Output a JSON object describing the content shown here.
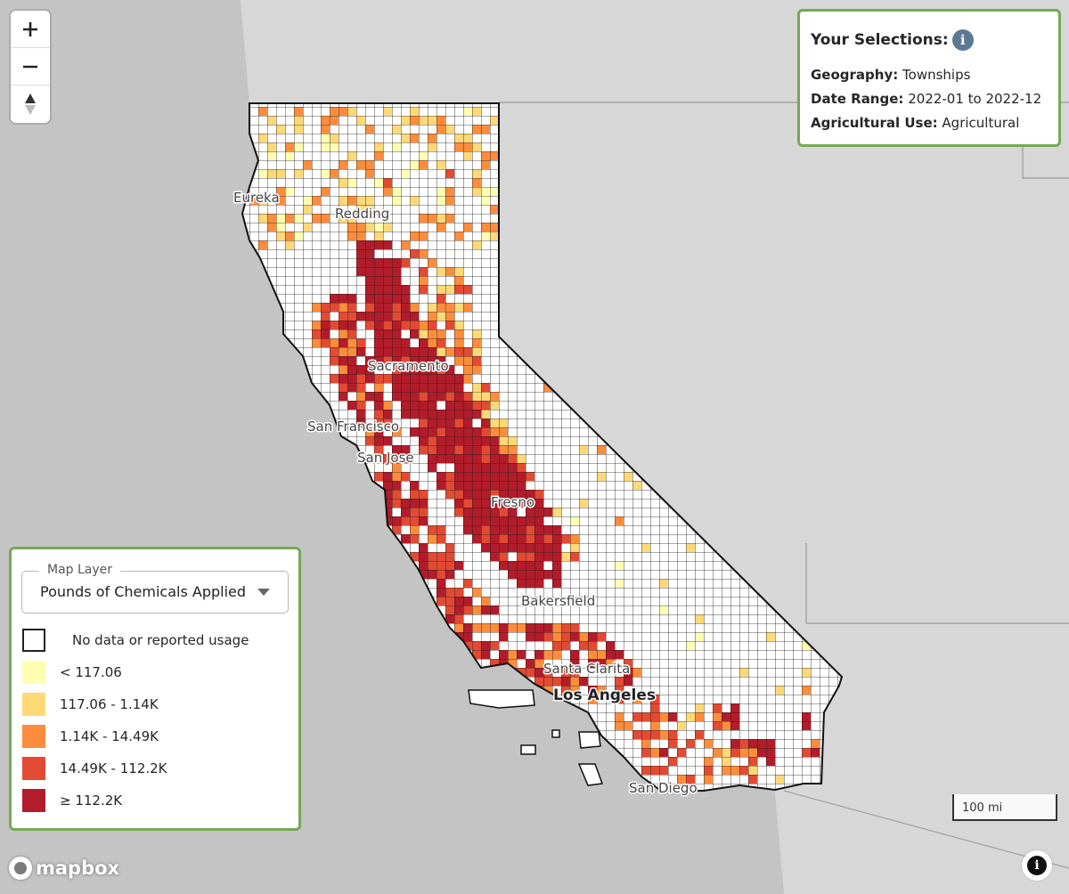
{
  "map": {
    "cities": [
      {
        "name": "Eureka",
        "major": false
      },
      {
        "name": "Redding",
        "major": false
      },
      {
        "name": "Sacramento",
        "major": false
      },
      {
        "name": "San Francisco",
        "major": false
      },
      {
        "name": "San Jose",
        "major": false
      },
      {
        "name": "Fresno",
        "major": false
      },
      {
        "name": "Bakersfield",
        "major": false
      },
      {
        "name": "Santa Clarita",
        "major": false
      },
      {
        "name": "Los Angeles",
        "major": true
      },
      {
        "name": "San Diego",
        "major": false
      }
    ],
    "colors": {
      "land_gray": "#d7d7d7",
      "ocean_gray": "#c4c4c4",
      "grid_line": "#1a1a1a",
      "no_data": "#ffffff",
      "class_1": "#ffffb2",
      "class_2": "#fed976",
      "class_3": "#fd8d3c",
      "class_4": "#e34a33",
      "class_5": "#b31c2a"
    }
  },
  "zoom": {
    "zoom_in_icon": "plus-icon",
    "zoom_out_icon": "minus-icon",
    "compass_icon": "compass-icon"
  },
  "selections": {
    "title": "Your Selections:",
    "info_icon": "i",
    "rows": [
      {
        "label": "Geography:",
        "value": "Townships"
      },
      {
        "label": "Date Range:",
        "value": "2022-01 to 2022-12"
      },
      {
        "label": "Agricultural Use:",
        "value": "Agricultural"
      }
    ]
  },
  "legend": {
    "select_label": "Map Layer",
    "selected_layer": "Pounds of Chemicals Applied",
    "items": [
      {
        "label": "No data or reported usage",
        "color": "#ffffff"
      },
      {
        "label": "< 117.06",
        "color": "#ffffb2"
      },
      {
        "label": "117.06 - 1.14K",
        "color": "#fed976"
      },
      {
        "label": "1.14K - 14.49K",
        "color": "#fd8d3c"
      },
      {
        "label": "14.49K - 112.2K",
        "color": "#e34a33"
      },
      {
        "label": "≥ 112.2K",
        "color": "#b31c2a"
      }
    ]
  },
  "scale": {
    "label": "100 mi"
  },
  "logo": {
    "text": "mapbox"
  },
  "attribution": {
    "icon": "i"
  }
}
